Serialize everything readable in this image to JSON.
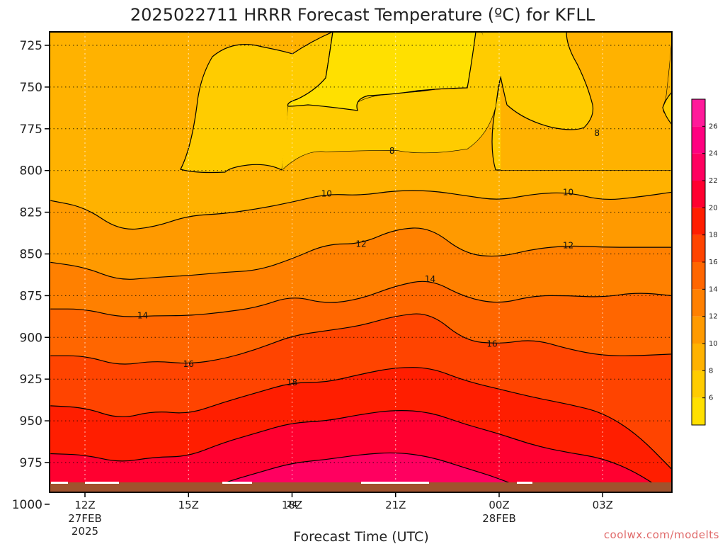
{
  "chart_data": {
    "type": "contour",
    "title": "2025022711 HRRR Forecast Temperature (ºC) for KFLL",
    "xlabel": "Forecast Time (UTC)",
    "ylabel": "",
    "y_scale": "pressure (hPa, decreasing upward)",
    "y_ticks": [
      "725",
      "750",
      "775",
      "800",
      "825",
      "850",
      "875",
      "900",
      "925",
      "950",
      "975",
      "1000"
    ],
    "x_ticks": [
      {
        "hour": "12Z",
        "date": "27FEB",
        "year": "2025"
      },
      {
        "hour": "15Z",
        "date": "",
        "year": ""
      },
      {
        "hour": "18Z",
        "date": "",
        "year": ""
      },
      {
        "hour": "21Z",
        "date": "",
        "year": ""
      },
      {
        "hour": "00Z",
        "date": "28FEB",
        "year": ""
      },
      {
        "hour": "03Z",
        "date": "",
        "year": ""
      }
    ],
    "x_hours": [
      11,
      12,
      13,
      14,
      15,
      16,
      17,
      18,
      19,
      20,
      21,
      22,
      23,
      24,
      25,
      26,
      27,
      28,
      29
    ],
    "contours": [
      {
        "level": 10,
        "pressure": [
          818,
          822,
          836,
          834,
          827,
          826,
          823,
          819,
          814,
          815,
          812,
          812,
          815,
          818,
          814,
          813,
          818,
          816,
          813
        ],
        "labels": [
          {
            "hour": 19,
            "text": "10"
          },
          {
            "hour": 26,
            "text": "10"
          }
        ]
      },
      {
        "level": 12,
        "pressure": [
          855,
          858,
          866,
          864,
          863,
          861,
          860,
          853,
          844,
          844,
          835,
          834,
          850,
          852,
          847,
          845,
          846,
          846,
          846
        ],
        "labels": [
          {
            "hour": 20,
            "text": "12"
          },
          {
            "hour": 26,
            "text": "12"
          }
        ]
      },
      {
        "level": 14,
        "pressure": [
          883,
          883,
          888,
          887,
          887,
          885,
          882,
          875,
          880,
          877,
          869,
          865,
          876,
          880,
          875,
          875,
          876,
          873,
          875
        ],
        "labels": [
          {
            "hour": 14,
            "text": "14"
          },
          {
            "hour": 22,
            "text": "14"
          }
        ]
      },
      {
        "level": 16,
        "pressure": [
          911,
          911,
          917,
          914,
          916,
          913,
          907,
          899,
          896,
          893,
          887,
          885,
          902,
          904,
          901,
          907,
          911,
          911,
          910
        ],
        "labels": [
          {
            "hour": 15,
            "text": "16"
          },
          {
            "hour": 24,
            "text": "16"
          }
        ]
      },
      {
        "level": 18,
        "pressure": [
          941,
          942,
          949,
          944,
          946,
          939,
          933,
          927,
          927,
          922,
          918,
          918,
          926,
          931,
          936,
          940,
          945,
          958,
          979
        ],
        "labels": [
          {
            "hour": 18,
            "text": "18"
          }
        ]
      },
      {
        "level": 24,
        "pressure": [
          null,
          null,
          null,
          null,
          1023,
          1012,
          1006,
          1000,
          997,
          995,
          995,
          999,
          1005,
          1012,
          1023,
          null,
          null,
          null,
          null
        ],
        "labels": [
          {
            "hour": 18,
            "text": "24"
          }
        ]
      }
    ],
    "upper_regions_8C": {
      "labels": [
        {
          "hour": 21,
          "text": "8"
        },
        {
          "hour": 27,
          "text": "8"
        }
      ]
    },
    "colorbar": {
      "ticks": [
        "6",
        "8",
        "10",
        "12",
        "14",
        "16",
        "18",
        "20",
        "22",
        "24",
        "26"
      ],
      "bands": [
        {
          "from": 4,
          "to": 6,
          "color": "#ffe000"
        },
        {
          "from": 6,
          "to": 8,
          "color": "#ffcc00"
        },
        {
          "from": 8,
          "to": 10,
          "color": "#ffb200"
        },
        {
          "from": 10,
          "to": 12,
          "color": "#ff9a00"
        },
        {
          "from": 12,
          "to": 14,
          "color": "#ff8000"
        },
        {
          "from": 14,
          "to": 16,
          "color": "#ff6600"
        },
        {
          "from": 16,
          "to": 18,
          "color": "#ff4400"
        },
        {
          "from": 18,
          "to": 20,
          "color": "#ff1e00"
        },
        {
          "from": 20,
          "to": 22,
          "color": "#ff0030"
        },
        {
          "from": 22,
          "to": 24,
          "color": "#ff0060"
        },
        {
          "from": 24,
          "to": 26,
          "color": "#ff0080"
        },
        {
          "from": 26,
          "to": 28,
          "color": "#ff1a9a"
        }
      ]
    },
    "ground_color": "#a0522d",
    "grid": "dotted"
  },
  "watermark": "coolwx.com/modelts"
}
